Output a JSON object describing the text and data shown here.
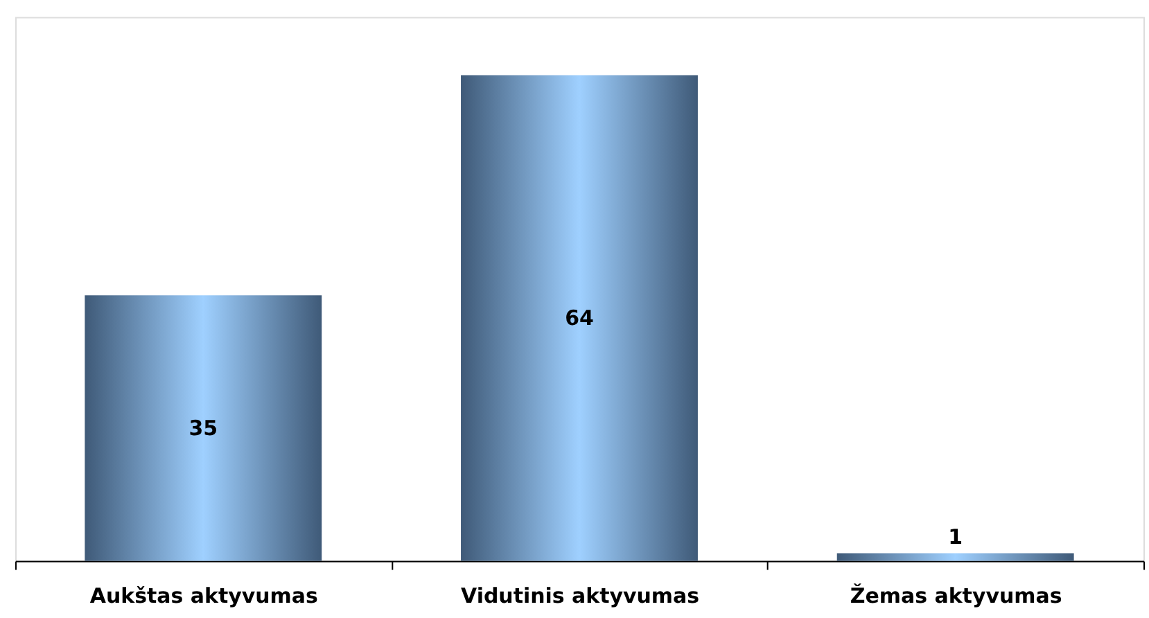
{
  "chart_data": {
    "type": "bar",
    "categories": [
      "Aukštas aktyvumas",
      "Vidutinis aktyvumas",
      "Žemas aktyvumas"
    ],
    "values": [
      35,
      64,
      1
    ],
    "color": "#9fd0ff",
    "data_labels": true
  }
}
